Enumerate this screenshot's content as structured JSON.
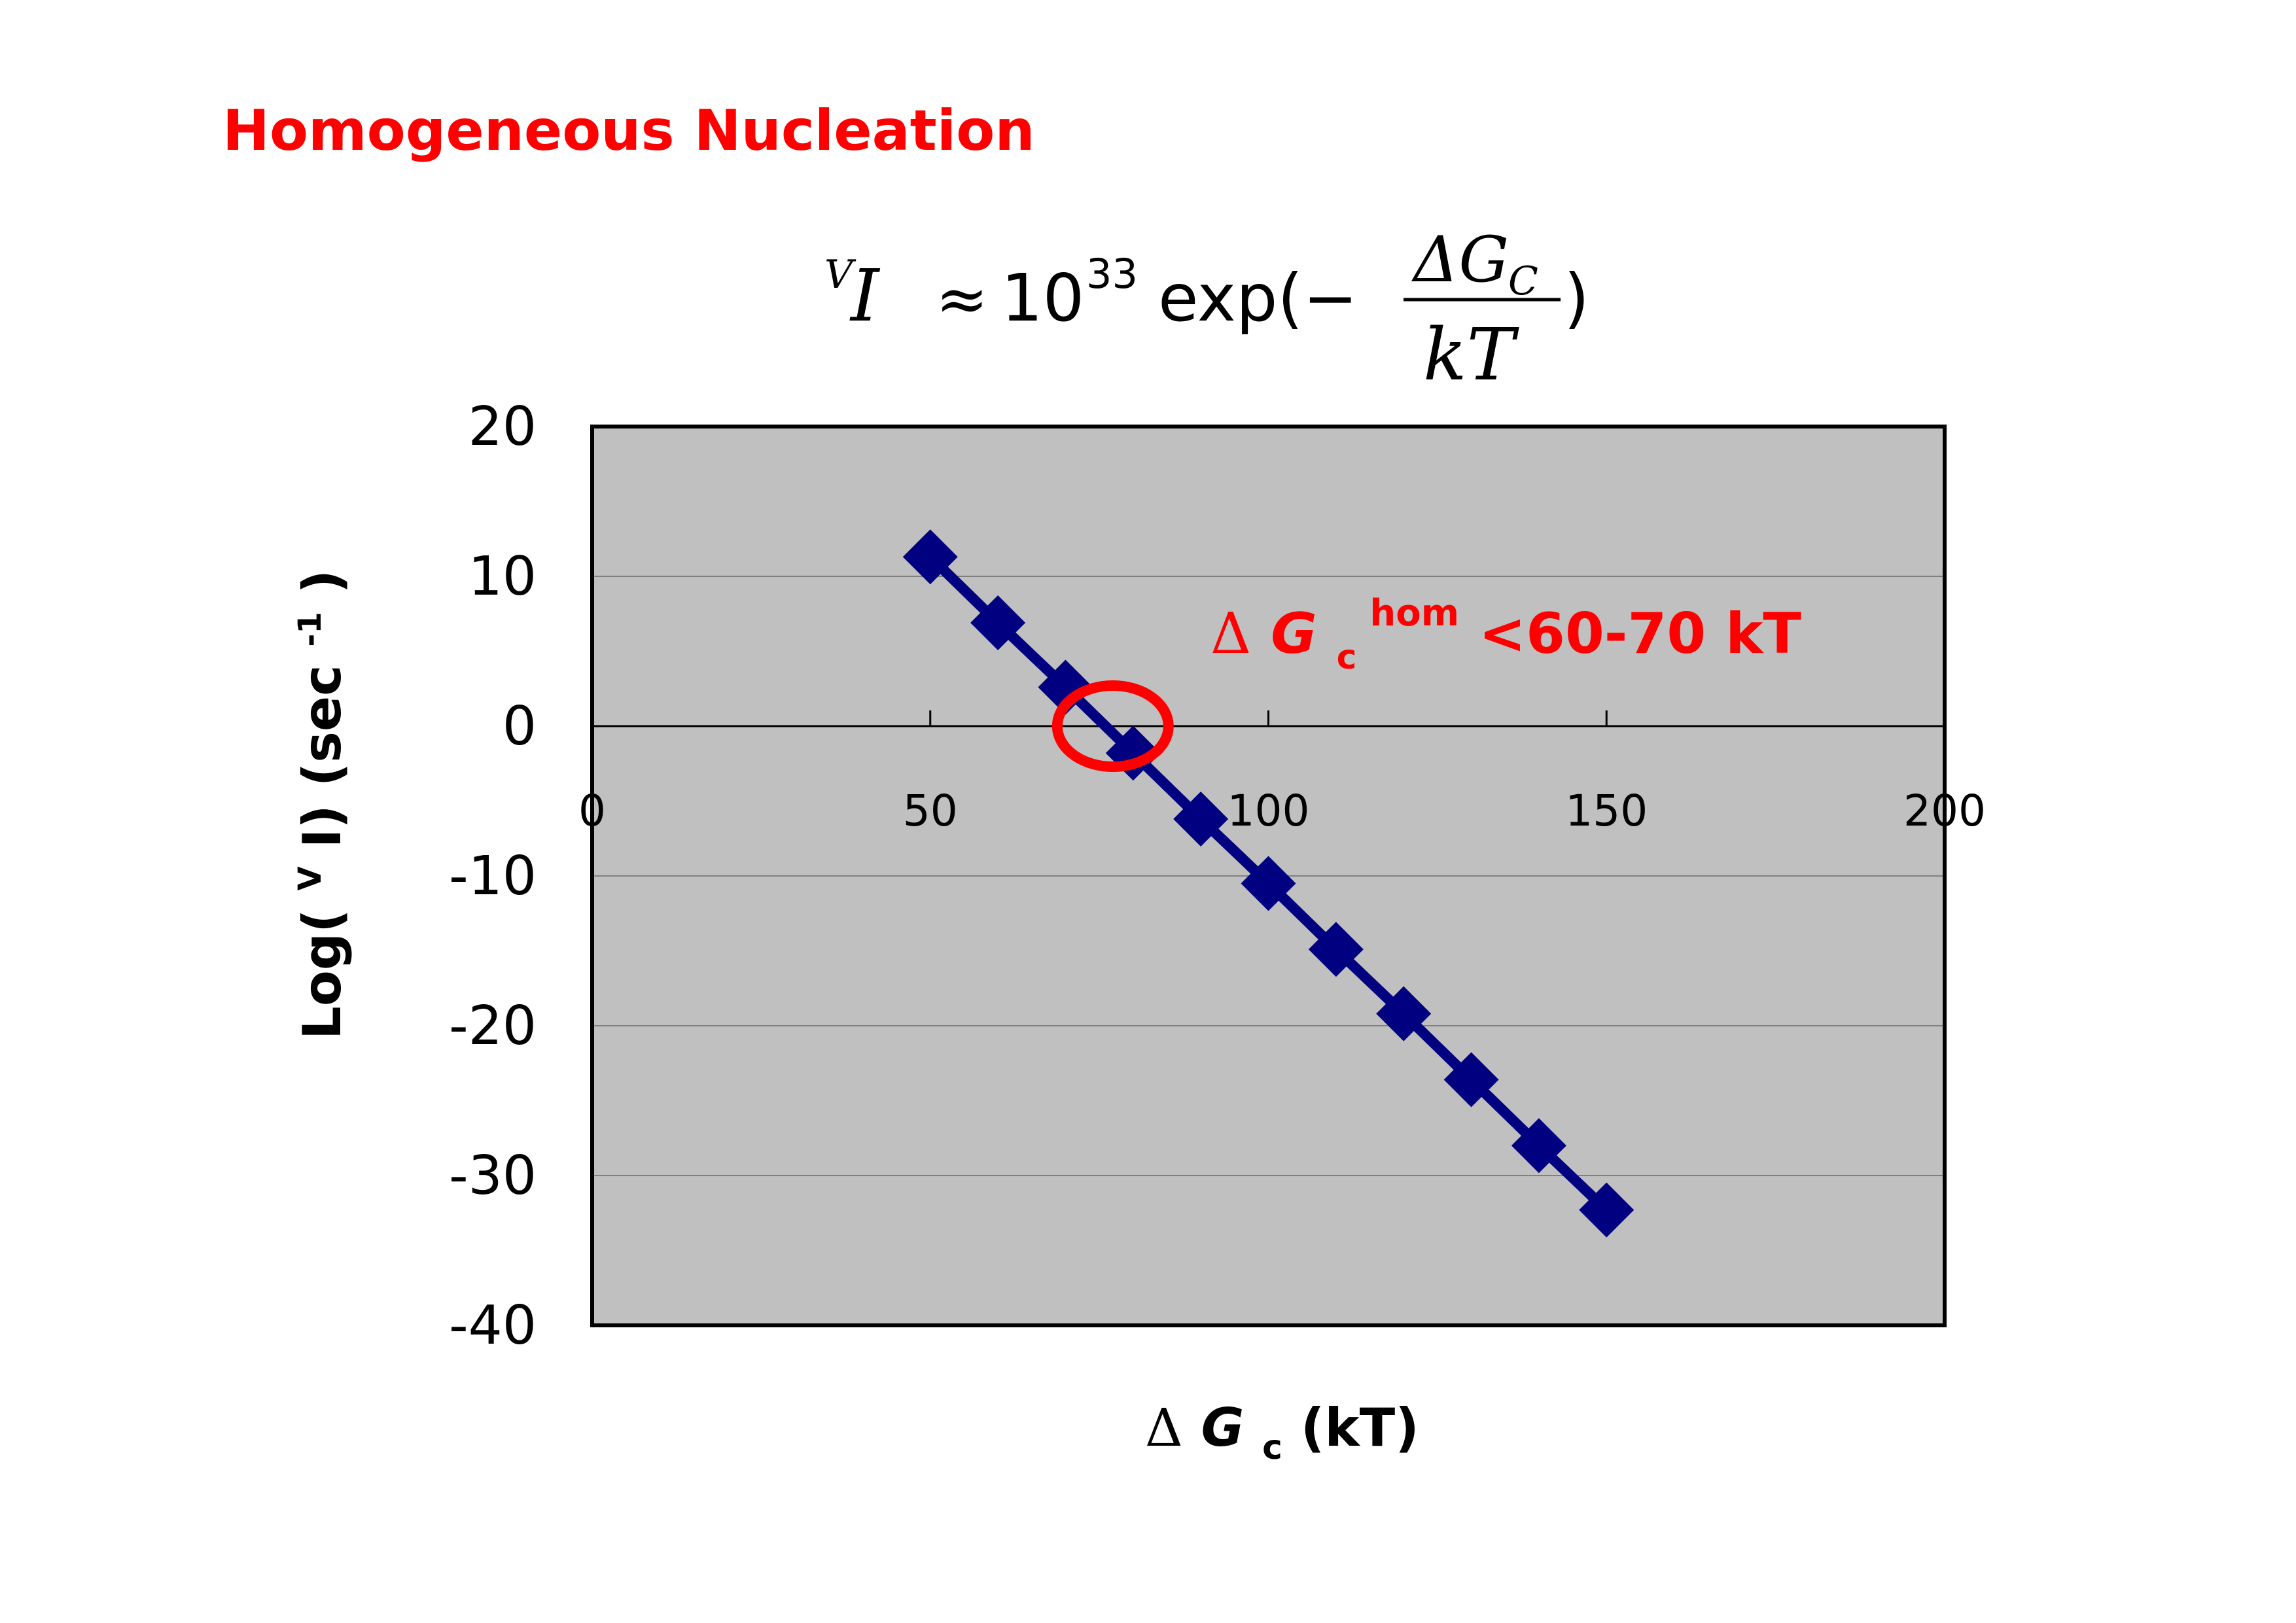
{
  "page": {
    "title": "Homogeneous Nucleation"
  },
  "formula": {
    "prefix_sup": "V",
    "symbol": "I",
    "approx": "≈",
    "base": "10",
    "exponent": "33",
    "func": "exp(−",
    "numerator": "ΔG",
    "numerator_sub": "C",
    "denominator": "kT",
    "close": ")"
  },
  "chart_data": {
    "type": "line",
    "x": [
      50,
      60,
      70,
      80,
      90,
      100,
      110,
      120,
      130,
      140,
      150
    ],
    "series": [
      {
        "values": [
          11.3,
          6.9,
          2.6,
          -1.8,
          -6.2,
          -10.5,
          -14.9,
          -19.2,
          -23.6,
          -28.0,
          -32.3
        ]
      }
    ],
    "xlabel": {
      "delta": "Δ",
      "var": "G",
      "sub": "c",
      "unit": " (kT)"
    },
    "ylabel": {
      "main": "Log(",
      "sup": "V",
      "symbol": "I) (sec",
      "exp": "-1",
      "close": ")"
    },
    "xlim": [
      0,
      200
    ],
    "ylim": [
      -40,
      20
    ],
    "x_ticks": [
      "0",
      "50",
      "100",
      "150",
      "200"
    ],
    "y_ticks": [
      "20",
      "10",
      "0",
      "-10",
      "-20",
      "-30",
      "-40"
    ],
    "grid": true,
    "plot_background": "#c0c0c0",
    "series_color": "#000080",
    "highlight_color": "#ff0000",
    "highlight_x": 77,
    "highlight_y": 0,
    "annotation": {
      "delta": "Δ",
      "var": "G",
      "sub": "c",
      "sup": "hom",
      "text": " <60-70 kT"
    }
  }
}
